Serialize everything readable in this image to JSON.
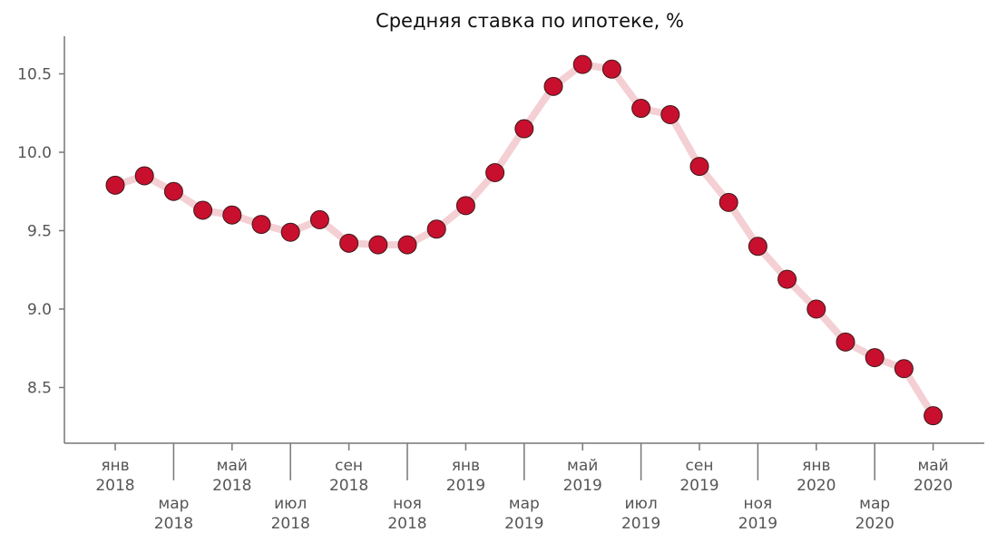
{
  "chart_data": {
    "type": "line",
    "title": "Средняя ставка по ипотеке, %",
    "xlabel": "",
    "ylabel": "",
    "ylim": [
      8.13,
      10.73
    ],
    "yticks": [
      "8.5",
      "9.0",
      "9.5",
      "10.0",
      "10.5"
    ],
    "ytick_values": [
      8.5,
      9.0,
      9.5,
      10.0,
      10.5
    ],
    "grid": false,
    "legend": null,
    "x": [
      "2018-01",
      "2018-02",
      "2018-03",
      "2018-04",
      "2018-05",
      "2018-06",
      "2018-07",
      "2018-08",
      "2018-09",
      "2018-10",
      "2018-11",
      "2018-12",
      "2019-01",
      "2019-02",
      "2019-03",
      "2019-04",
      "2019-05",
      "2019-06",
      "2019-07",
      "2019-08",
      "2019-09",
      "2019-10",
      "2019-11",
      "2019-12",
      "2020-01",
      "2020-02",
      "2020-03",
      "2020-04",
      "2020-05"
    ],
    "xticks": [
      {
        "month": "янв",
        "year": "2018",
        "index": 0,
        "row": 1
      },
      {
        "month": "мар",
        "year": "2018",
        "index": 2,
        "row": 2
      },
      {
        "month": "май",
        "year": "2018",
        "index": 4,
        "row": 1
      },
      {
        "month": "июл",
        "year": "2018",
        "index": 6,
        "row": 2
      },
      {
        "month": "сен",
        "year": "2018",
        "index": 8,
        "row": 1
      },
      {
        "month": "ноя",
        "year": "2018",
        "index": 10,
        "row": 2
      },
      {
        "month": "янв",
        "year": "2019",
        "index": 12,
        "row": 1
      },
      {
        "month": "мар",
        "year": "2019",
        "index": 14,
        "row": 2
      },
      {
        "month": "май",
        "year": "2019",
        "index": 16,
        "row": 1
      },
      {
        "month": "июл",
        "year": "2019",
        "index": 18,
        "row": 2
      },
      {
        "month": "сен",
        "year": "2019",
        "index": 20,
        "row": 1
      },
      {
        "month": "ноя",
        "year": "2019",
        "index": 22,
        "row": 2
      },
      {
        "month": "янв",
        "year": "2020",
        "index": 24,
        "row": 1
      },
      {
        "month": "мар",
        "year": "2020",
        "index": 26,
        "row": 2
      },
      {
        "month": "май",
        "year": "2020",
        "index": 28,
        "row": 1
      }
    ],
    "series": [
      {
        "name": "Средняя ставка по ипотеке",
        "values": [
          9.79,
          9.85,
          9.75,
          9.63,
          9.6,
          9.54,
          9.49,
          9.57,
          9.42,
          9.41,
          9.41,
          9.51,
          9.66,
          9.87,
          10.15,
          10.42,
          10.56,
          10.53,
          10.28,
          10.24,
          9.91,
          9.68,
          9.4,
          9.19,
          9.0,
          8.79,
          8.69,
          8.62,
          8.32
        ],
        "line_color": "#f4d0d4",
        "marker_color": "#c8102e",
        "marker_edge_color": "#3a1a1a"
      }
    ]
  }
}
